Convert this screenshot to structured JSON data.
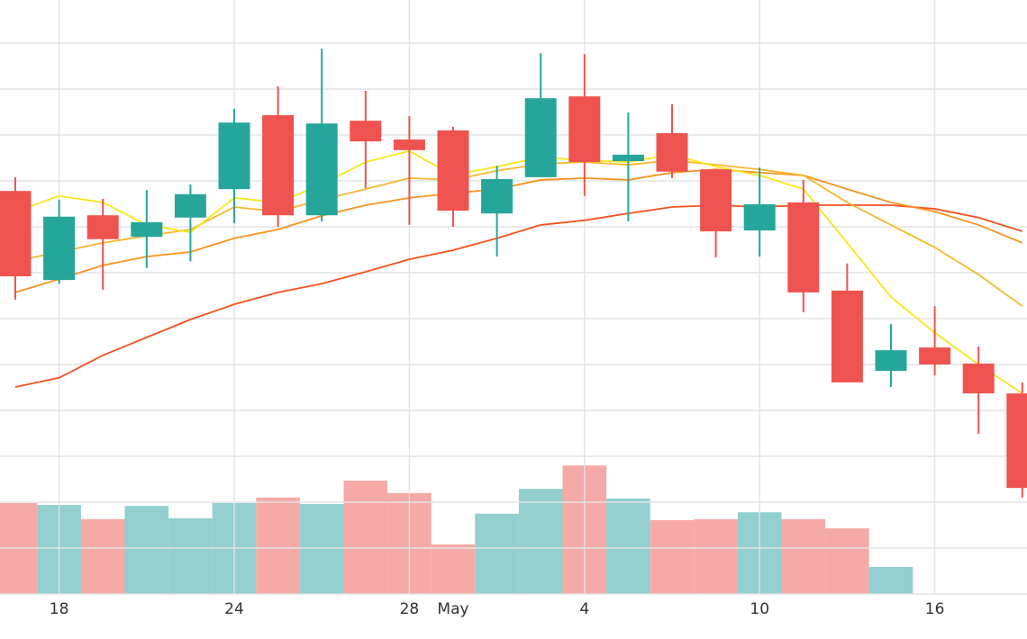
{
  "chart_data": {
    "type": "candlestick",
    "categories": [
      null,
      "18",
      null,
      null,
      null,
      "24",
      null,
      null,
      null,
      "28",
      "May",
      null,
      null,
      "4",
      null,
      null,
      null,
      "10",
      null,
      null,
      null,
      "16",
      null,
      null
    ],
    "open": [
      87.8,
      68.4,
      82.5,
      77.8,
      82.0,
      88.2,
      104.3,
      82.5,
      103.1,
      99.0,
      101.0,
      82.9,
      90.8,
      108.4,
      94.3,
      100.4,
      92.5,
      79.2,
      85.3,
      66.1,
      48.6,
      53.7,
      50.2,
      43.7
    ],
    "high": [
      90.8,
      85.9,
      86.1,
      88.0,
      89.2,
      105.7,
      110.6,
      118.8,
      109.6,
      104.1,
      101.8,
      93.3,
      117.8,
      117.6,
      104.9,
      106.7,
      92.5,
      92.9,
      90.2,
      72.0,
      58.8,
      62.7,
      53.9,
      46.1
    ],
    "low": [
      64.1,
      67.6,
      66.3,
      71.0,
      72.5,
      80.8,
      80.0,
      81.2,
      88.4,
      80.4,
      80.0,
      73.5,
      90.8,
      86.7,
      81.2,
      90.6,
      73.3,
      73.5,
      61.4,
      46.1,
      45.1,
      47.6,
      34.9,
      21.0
    ],
    "close": [
      69.2,
      82.2,
      77.3,
      81.0,
      87.1,
      102.7,
      82.5,
      102.5,
      98.6,
      96.7,
      83.5,
      90.4,
      108.0,
      94.1,
      95.7,
      92.0,
      79.0,
      84.9,
      65.7,
      46.1,
      53.1,
      50.0,
      43.7,
      23.1
    ],
    "up_color": "#26a69a",
    "down_color": "#ef5350",
    "volume": {
      "values": [
        19.8,
        19.4,
        16.3,
        19.2,
        16.5,
        19.8,
        21.0,
        19.6,
        24.7,
        22.0,
        10.8,
        17.5,
        22.9,
        28.0,
        20.8,
        16.1,
        16.3,
        17.8,
        16.3,
        14.3,
        5.9,
        null,
        null,
        null
      ],
      "up_color": "#93cfcf",
      "down_color": "#f5aaa7"
    },
    "series": [
      {
        "color": "#f4511e",
        "values": [
          45.1,
          47.1,
          52.0,
          55.9,
          59.8,
          63.1,
          65.7,
          67.6,
          70.2,
          72.9,
          74.9,
          77.5,
          80.4,
          81.4,
          82.9,
          84.3,
          84.7,
          84.3,
          84.7,
          84.7,
          84.7,
          83.9,
          82.0,
          79.0
        ]
      },
      {
        "color": "#f7931e",
        "values": [
          65.7,
          68.6,
          71.6,
          73.5,
          74.5,
          77.5,
          79.4,
          82.4,
          84.7,
          86.3,
          87.3,
          88.2,
          90.2,
          90.6,
          90.2,
          91.8,
          92.5,
          91.8,
          91.2,
          88.2,
          85.3,
          83.3,
          80.4,
          76.5
        ]
      },
      {
        "color": "#f5b82e",
        "values": [
          72.5,
          74.5,
          76.5,
          78.0,
          79.4,
          84.3,
          83.3,
          85.9,
          88.2,
          90.6,
          90.2,
          92.2,
          93.7,
          94.1,
          93.5,
          94.5,
          93.5,
          92.5,
          91.2,
          85.3,
          80.4,
          75.5,
          69.6,
          62.7
        ]
      },
      {
        "color": "#f7e61c",
        "values": [
          83.3,
          86.7,
          85.3,
          80.4,
          78.8,
          86.3,
          85.3,
          89.2,
          94.1,
          96.5,
          91.2,
          93.1,
          95.1,
          94.5,
          94.1,
          95.7,
          93.1,
          91.2,
          88.2,
          76.5,
          64.7,
          56.9,
          50.0,
          43.7
        ]
      }
    ],
    "ylim": [
      0,
      129.4
    ],
    "yticks": [
      0,
      10,
      20,
      30,
      40,
      50,
      60,
      70,
      80,
      90,
      100,
      110,
      120
    ],
    "grid": true
  }
}
